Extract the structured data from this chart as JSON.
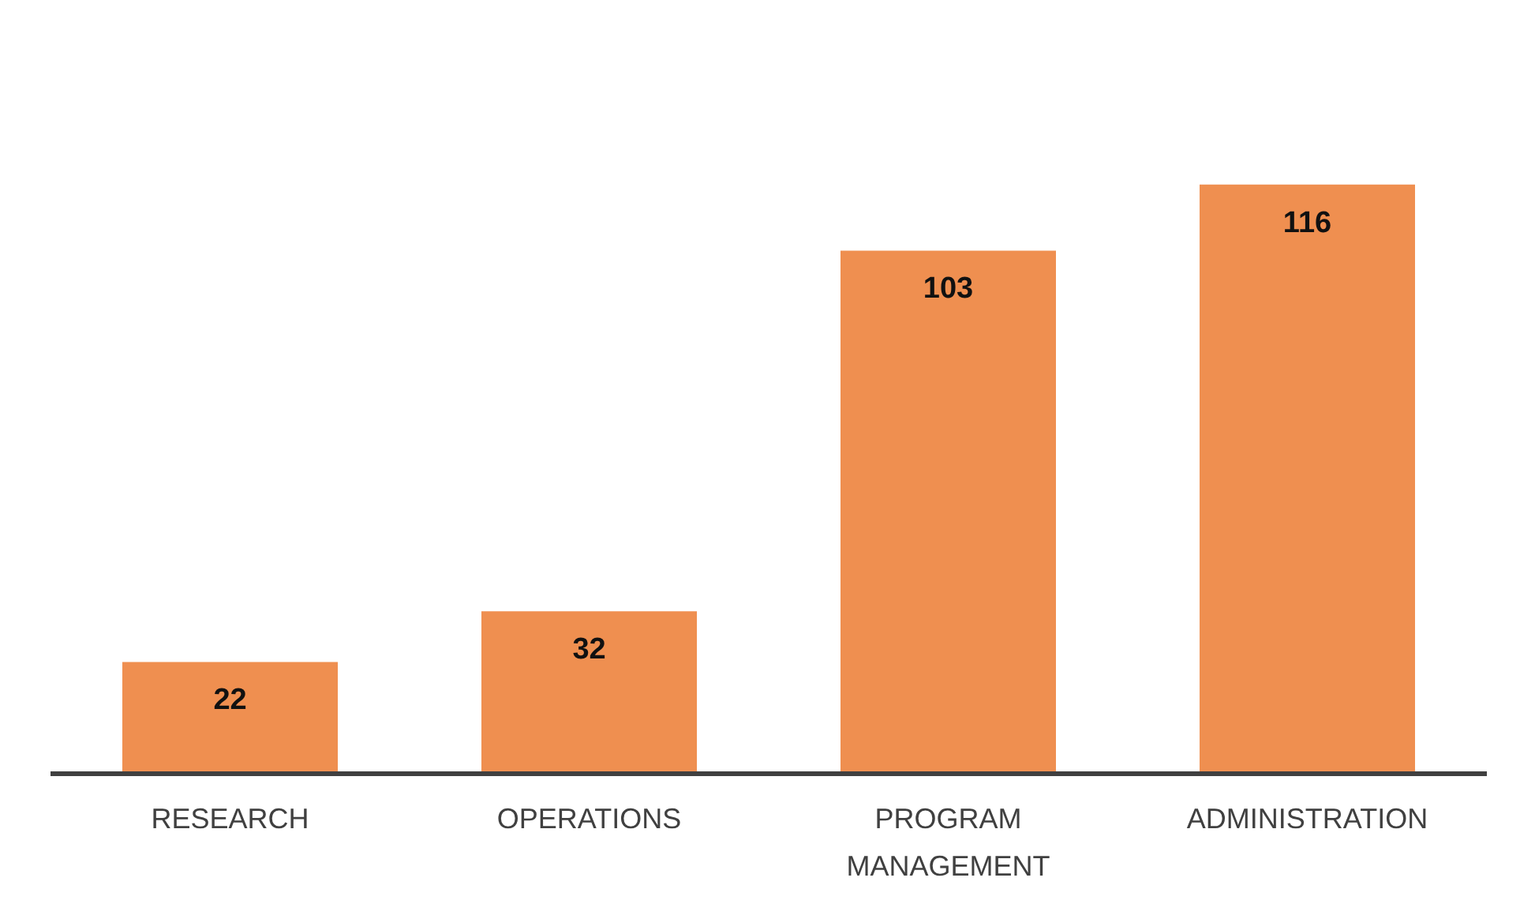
{
  "chart_data": {
    "type": "bar",
    "categories": [
      "RESEARCH",
      "OPERATIONS",
      "PROGRAM MANAGEMENT",
      "ADMINISTRATION"
    ],
    "values": [
      22,
      32,
      103,
      116
    ],
    "color": "#ef8f50",
    "data_labels": true
  }
}
